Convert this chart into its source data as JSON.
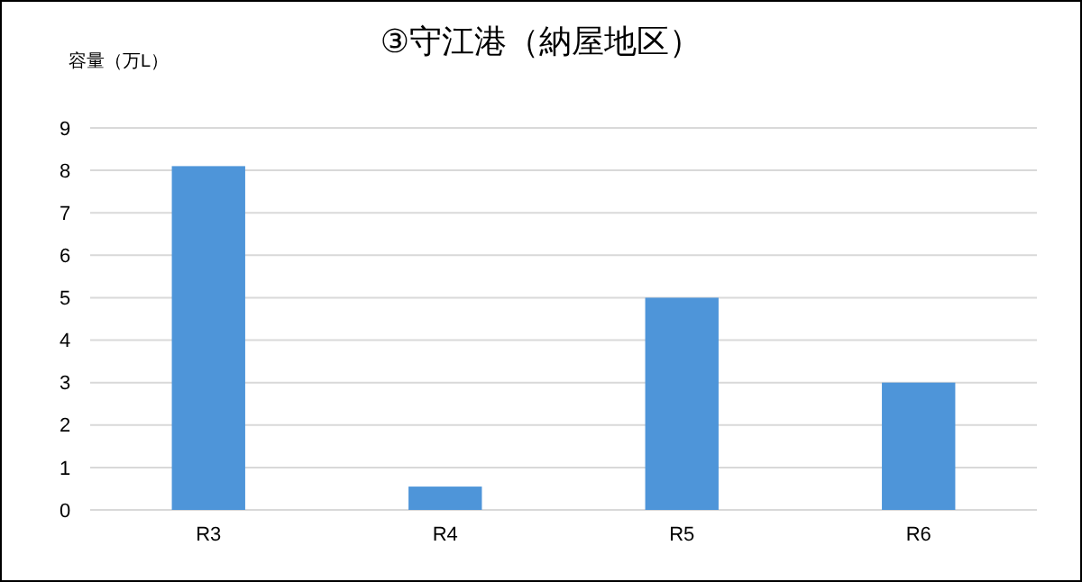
{
  "chart_data": {
    "type": "bar",
    "title": "③守江港（納屋地区）",
    "ylabel": "容量（万L）",
    "categories": [
      "R3",
      "R4",
      "R5",
      "R6"
    ],
    "values": [
      8.1,
      0.55,
      5,
      3
    ],
    "color": "#4e95d9",
    "ylim": [
      0,
      9
    ],
    "yticks": [
      0,
      1,
      2,
      3,
      4,
      5,
      6,
      7,
      8,
      9
    ],
    "grid": "y"
  }
}
